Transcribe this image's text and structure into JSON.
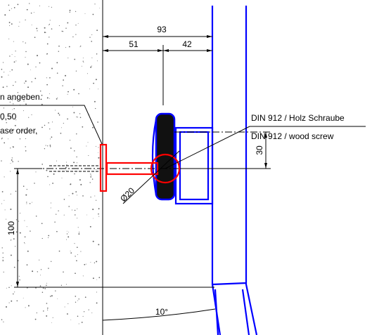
{
  "dimensions": {
    "total": "93",
    "left": "51",
    "right": "42",
    "offset": "30",
    "height": "100",
    "angle": "10°",
    "diameter": "Ø20"
  },
  "labels": {
    "screw_de": "DIN 912 / Holz Schraube",
    "screw_en": "DIN 912 /  wood screw"
  },
  "notes": [
    "n angeben.",
    "0,50",
    "ase order."
  ]
}
